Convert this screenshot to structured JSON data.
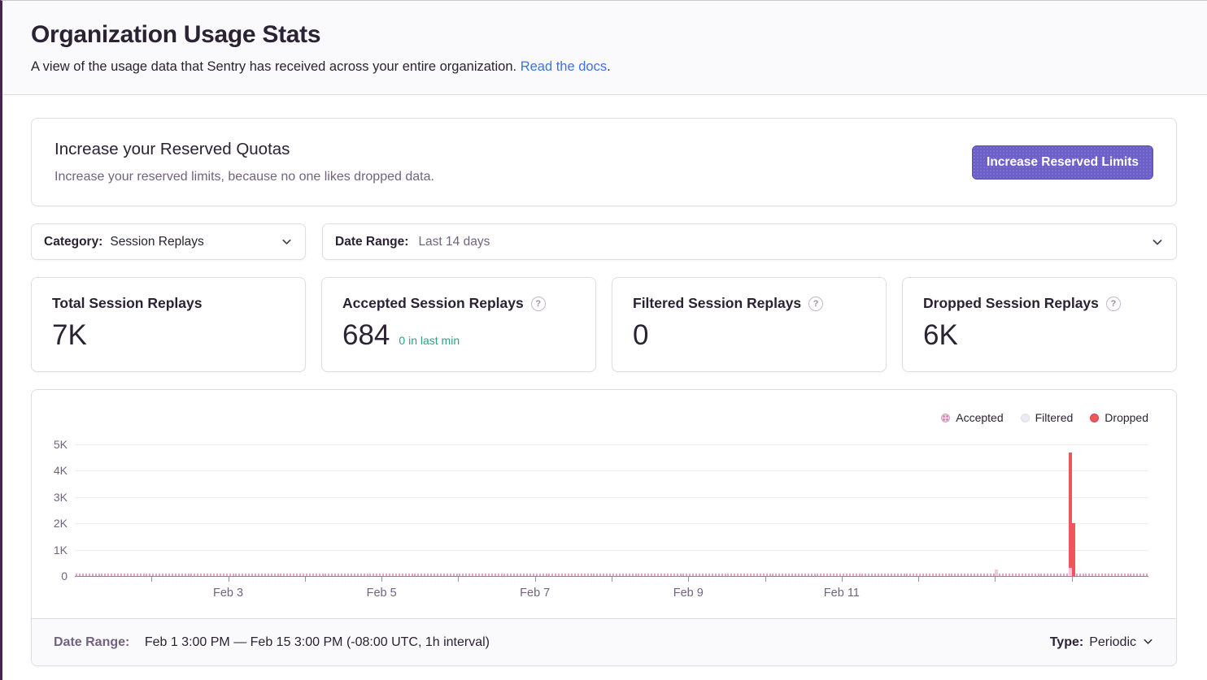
{
  "header": {
    "title": "Organization Usage Stats",
    "subtitle_prefix": "A view of the usage data that Sentry has received across your entire organization. ",
    "docs_link": "Read the docs",
    "subtitle_suffix": "."
  },
  "quota": {
    "title": "Increase your Reserved Quotas",
    "subtitle": "Increase your reserved limits, because no one likes dropped data.",
    "button_label": "Increase Reserved Limits"
  },
  "filters": {
    "category_label": "Category:",
    "category_value": "Session Replays",
    "date_range_label": "Date Range:",
    "date_range_value": "Last 14 days"
  },
  "stat_cards": [
    {
      "title": "Total Session Replays",
      "value": "7K"
    },
    {
      "title": "Accepted Session Replays",
      "value": "684",
      "sub": "0 in last min"
    },
    {
      "title": "Filtered Session Replays",
      "value": "0"
    },
    {
      "title": "Dropped Session Replays",
      "value": "6K"
    }
  ],
  "help_glyph": "?",
  "chart_footer": {
    "date_range_label": "Date Range:",
    "date_range_value": "Feb 1 3:00 PM — Feb 15 3:00 PM (-08:00 UTC, 1h interval)",
    "type_label": "Type:",
    "type_value": "Periodic"
  },
  "colors": {
    "accent_purple": "#6C5FC7",
    "link_blue": "#3C74DD",
    "success_green": "#2BA185",
    "dropped_red": "#F2545B",
    "accepted_pink": "#E2A3C6",
    "filtered_gray": "#EDEAF2",
    "border": "#E0DCE5"
  },
  "chart_data": {
    "type": "bar",
    "stacked": true,
    "title": "",
    "x_axis": {
      "start": "Feb 1 3:00 PM",
      "end": "Feb 15 3:00 PM",
      "interval": "1h",
      "hours_total": 336,
      "tick_labels": [
        "Feb 3",
        "Feb 5",
        "Feb 7",
        "Feb 9",
        "Feb 11"
      ],
      "tick_label_day_offsets": [
        2,
        4,
        6,
        8,
        10
      ]
    },
    "y_axis": {
      "min": 0,
      "max": 5500,
      "tick_values": [
        0,
        1000,
        2000,
        3000,
        4000,
        5000
      ],
      "tick_labels": [
        "0",
        "1K",
        "2K",
        "3K",
        "4K",
        "5K"
      ]
    },
    "legend": {
      "position": "top-right",
      "entries": [
        "Accepted",
        "Filtered",
        "Dropped"
      ]
    },
    "grid": true,
    "series": [
      {
        "name": "Accepted",
        "color": "#E2A3C6",
        "total": 684,
        "baseline_hourly_value": 2,
        "points": [
          {
            "hour_offset": 288,
            "label": "Feb 13 3:00 PM",
            "value": 250
          },
          {
            "hour_offset": 311,
            "label": "Feb 14 2:00 PM",
            "value": 300
          }
        ]
      },
      {
        "name": "Filtered",
        "color": "#EDEAF2",
        "total": 0,
        "points": []
      },
      {
        "name": "Dropped",
        "color": "#F2545B",
        "total": 6000,
        "points": [
          {
            "hour_offset": 311,
            "label": "Feb 14 2:00 PM",
            "value": 4400
          },
          {
            "hour_offset": 312,
            "label": "Feb 14 3:00 PM",
            "value": 2000
          }
        ]
      }
    ]
  }
}
